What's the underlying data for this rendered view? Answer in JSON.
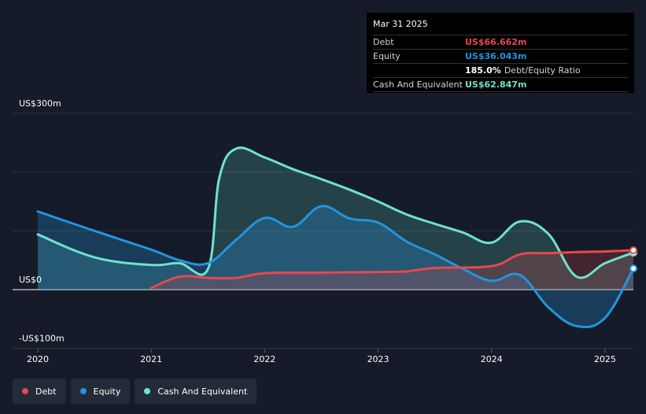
{
  "tooltip": {
    "date": "Mar 31 2025",
    "rows": {
      "debt": {
        "label": "Debt",
        "value": "US$66.662m"
      },
      "equity": {
        "label": "Equity",
        "value": "US$36.043m"
      },
      "ratio": {
        "value": "185.0%",
        "label": "Debt/Equity Ratio"
      },
      "cash": {
        "label": "Cash And Equivalent",
        "value": "US$62.847m"
      }
    }
  },
  "legend": [
    {
      "key": "debt",
      "label": "Debt",
      "color": "#e8474f"
    },
    {
      "key": "equity",
      "label": "Equity",
      "color": "#2394df"
    },
    {
      "key": "cash",
      "label": "Cash And Equivalent",
      "color": "#6de3cb"
    }
  ],
  "chart_data": {
    "type": "area",
    "ylim": [
      -100,
      300
    ],
    "y_tick_labels": [
      "US$300m",
      "US$0",
      "-US$100m"
    ],
    "x_tick_labels": [
      "2020",
      "2021",
      "2022",
      "2023",
      "2024",
      "2025"
    ],
    "xlim": [
      2020.0,
      2025.25
    ],
    "gridlines": true,
    "series": [
      {
        "name": "Debt",
        "color": "#e8474f",
        "x": [
          2021.0,
          2021.25,
          2021.5,
          2021.75,
          2022.0,
          2022.5,
          2023.0,
          2023.25,
          2023.5,
          2024.0,
          2024.25,
          2024.5,
          2024.75,
          2025.0,
          2025.25
        ],
        "y": [
          3,
          22,
          20,
          20,
          28,
          29,
          30,
          31,
          37,
          40,
          60,
          62,
          64,
          65,
          67
        ]
      },
      {
        "name": "Equity",
        "color": "#2394df",
        "x": [
          2020.0,
          2020.5,
          2021.0,
          2021.25,
          2021.5,
          2021.75,
          2022.0,
          2022.25,
          2022.5,
          2022.75,
          2023.0,
          2023.25,
          2023.5,
          2023.75,
          2024.0,
          2024.25,
          2024.5,
          2024.75,
          2025.0,
          2025.25
        ],
        "y": [
          133,
          100,
          68,
          50,
          45,
          85,
          122,
          107,
          142,
          121,
          114,
          82,
          60,
          35,
          15,
          25,
          -30,
          -62,
          -48,
          36
        ]
      },
      {
        "name": "Cash And Equivalent",
        "color": "#6de3cb",
        "x": [
          2020.0,
          2020.5,
          2021.0,
          2021.25,
          2021.5,
          2021.6,
          2021.75,
          2022.0,
          2022.25,
          2022.5,
          2022.75,
          2023.0,
          2023.25,
          2023.5,
          2023.75,
          2024.0,
          2024.25,
          2024.5,
          2024.75,
          2025.0,
          2025.25
        ],
        "y": [
          94,
          55,
          42,
          45,
          35,
          190,
          240,
          225,
          205,
          188,
          170,
          150,
          128,
          112,
          97,
          80,
          116,
          95,
          22,
          45,
          63
        ]
      }
    ]
  }
}
